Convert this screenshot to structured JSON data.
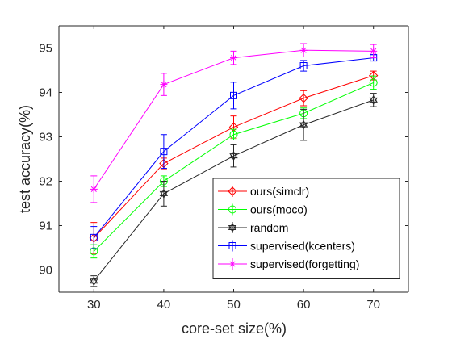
{
  "chart_data": {
    "type": "line",
    "xlabel": "core-set size(%)",
    "ylabel": "test accuracy(%)",
    "x": [
      30,
      40,
      50,
      60,
      70
    ],
    "xlim": [
      25,
      75
    ],
    "ylim": [
      89.5,
      95.5
    ],
    "xticks": [
      "30",
      "40",
      "50",
      "60",
      "70"
    ],
    "yticks": [
      "90",
      "91",
      "92",
      "93",
      "94",
      "95"
    ],
    "grid": false,
    "legend_position": "bottom-right",
    "series": [
      {
        "name": "ours(simclr)",
        "color": "#ff0000",
        "marker": "diamond",
        "values": [
          90.72,
          92.4,
          93.22,
          93.87,
          94.38
        ],
        "errors": [
          0.35,
          0.12,
          0.25,
          0.17,
          0.1
        ]
      },
      {
        "name": "ours(moco)",
        "color": "#00ff00",
        "marker": "circle",
        "values": [
          90.42,
          92.0,
          93.05,
          93.53,
          94.22
        ],
        "errors": [
          0.15,
          0.12,
          0.12,
          0.12,
          0.15
        ]
      },
      {
        "name": "random",
        "color": "#262626",
        "marker": "hexagram",
        "values": [
          89.75,
          91.72,
          92.57,
          93.27,
          93.83
        ],
        "errors": [
          0.12,
          0.28,
          0.25,
          0.35,
          0.15
        ]
      },
      {
        "name": "supervised(kcenters)",
        "color": "#0000ff",
        "marker": "square",
        "values": [
          90.73,
          92.67,
          93.93,
          94.6,
          94.78
        ],
        "errors": [
          0.25,
          0.38,
          0.3,
          0.12,
          0.07
        ]
      },
      {
        "name": "supervised(forgetting)",
        "color": "#ff00ff",
        "marker": "star",
        "values": [
          91.82,
          94.18,
          94.78,
          94.95,
          94.93
        ],
        "errors": [
          0.3,
          0.25,
          0.15,
          0.15,
          0.15
        ]
      }
    ]
  }
}
